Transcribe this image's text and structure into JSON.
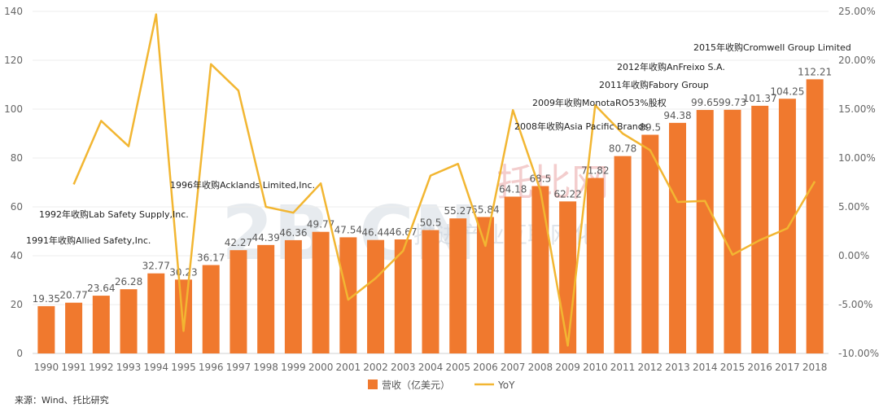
{
  "chart_data": {
    "type": "bar+line",
    "categories": [
      "1990",
      "1991",
      "1992",
      "1993",
      "1994",
      "1995",
      "1996",
      "1997",
      "1998",
      "1999",
      "2000",
      "2001",
      "2002",
      "2003",
      "2004",
      "2005",
      "2006",
      "2007",
      "2008",
      "2009",
      "2010",
      "2011",
      "2012",
      "2013",
      "2014",
      "2015",
      "2016",
      "2017",
      "2018"
    ],
    "series": [
      {
        "name": "营收（亿美元）",
        "type": "bar",
        "axis": "left",
        "color": "#F0792E",
        "values": [
          19.35,
          20.77,
          23.64,
          26.28,
          32.77,
          30.23,
          36.17,
          42.27,
          44.39,
          46.36,
          49.77,
          47.54,
          46.44,
          46.67,
          50.5,
          55.27,
          55.84,
          64.18,
          68.5,
          62.22,
          71.82,
          80.78,
          89.5,
          94.38,
          99.65,
          99.73,
          101.37,
          104.25,
          112.21
        ],
        "labels": [
          "19.35",
          "20.77",
          "23.64",
          "26.28",
          "32.77",
          "30.23",
          "36.17",
          "42.27",
          "44.39",
          "46.36",
          "49.77",
          "47.54",
          "46.44",
          "46.67",
          "50.5",
          "55.27",
          "55.84",
          "64.18",
          "68.5",
          "62.22",
          "71.82",
          "80.78",
          "89.5",
          "94.38",
          "99.65",
          "99.73",
          "101.37",
          "104.25",
          "112.21"
        ]
      },
      {
        "name": "YoY",
        "type": "line",
        "axis": "right",
        "color": "#F2B632",
        "values": [
          null,
          7.3,
          13.8,
          11.2,
          24.7,
          -7.7,
          19.6,
          16.9,
          5.0,
          4.4,
          7.4,
          -4.5,
          -2.3,
          0.5,
          8.2,
          9.4,
          1.0,
          14.9,
          6.7,
          -9.2,
          15.4,
          12.5,
          10.8,
          5.5,
          5.6,
          0.1,
          1.6,
          2.8,
          7.6
        ]
      }
    ],
    "left_axis": {
      "min": 0,
      "max": 140,
      "ticks": [
        "0",
        "20",
        "40",
        "60",
        "80",
        "100",
        "120",
        "140"
      ]
    },
    "right_axis": {
      "min": -10,
      "max": 25,
      "ticks": [
        "-10.00%",
        "-5.00%",
        "0.00%",
        "5.00%",
        "10.00%",
        "15.00%",
        "20.00%",
        "25.00%"
      ]
    },
    "annotations": [
      "1991年收购Allied Safety,Inc.",
      "1992年收购Lab Safety Supply,Inc.",
      "1996年收购Acklands Limited,Inc.",
      "2008年收购Asia Pacific Brands",
      "2009年收购MonotaRO53%股权",
      "2011年收购Fabory Group",
      "2012年收购AnFreixo S.A.",
      "2015年收购Cromwell Group Limited"
    ],
    "legend": [
      "营收（亿美元）",
      "YoY"
    ],
    "legend_position": "bottom",
    "grid": true
  },
  "source": "来源：Wind、托比研究",
  "watermark": {
    "logo": "2B.CN",
    "brand": "托比网",
    "slogan": "推进产业互联网化"
  }
}
